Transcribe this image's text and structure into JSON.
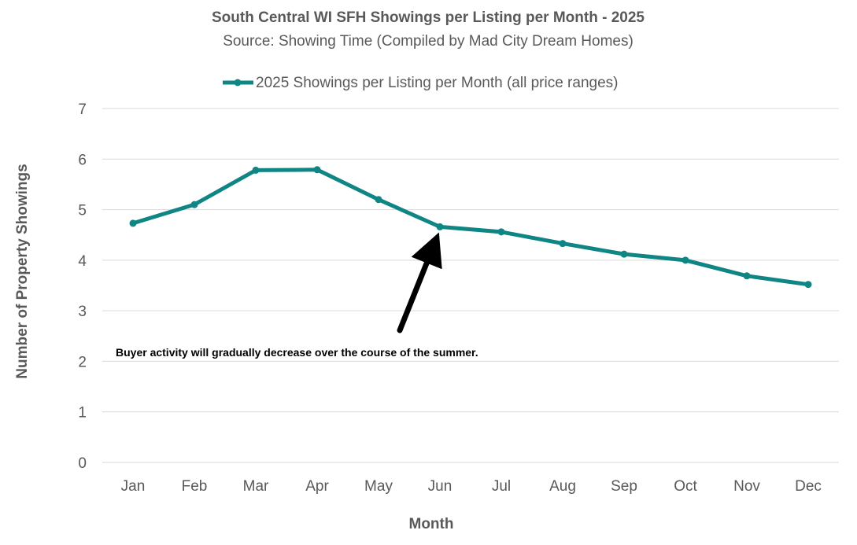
{
  "chart_data": {
    "type": "line",
    "title": "South Central WI SFH Showings per Listing per Month - 2025",
    "subtitle": "Source: Showing Time (Compiled by Mad City Dream Homes)",
    "xlabel": "Month",
    "ylabel": "Number of Property Showings",
    "categories": [
      "Jan",
      "Feb",
      "Mar",
      "Apr",
      "May",
      "Jun",
      "Jul",
      "Aug",
      "Sep",
      "Oct",
      "Nov",
      "Dec"
    ],
    "yticks": [
      "0",
      "1",
      "2",
      "3",
      "4",
      "5",
      "6",
      "7"
    ],
    "ylim": [
      0,
      7
    ],
    "grid": true,
    "legend_position": "top",
    "series": [
      {
        "name": "2025 Showings per Listing per Month (all price ranges)",
        "color": "#0f8584",
        "values": [
          4.73,
          5.1,
          5.78,
          5.79,
          5.2,
          4.66,
          4.56,
          4.33,
          4.12,
          4.0,
          3.69,
          3.52
        ]
      }
    ],
    "annotation": {
      "text": "Buyer activity will gradually decrease over the course of the summer.",
      "points_to": "Jun"
    }
  }
}
